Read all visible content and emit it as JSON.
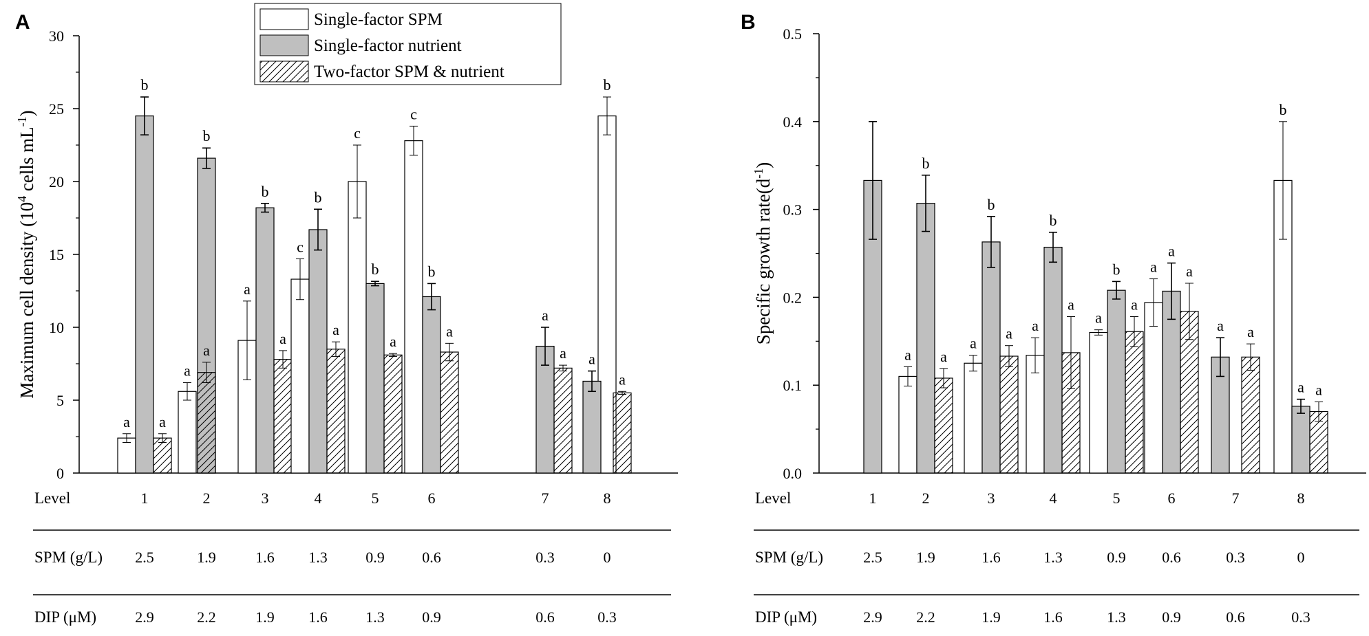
{
  "chart_data": [
    {
      "type": "bar",
      "panel": "A",
      "ylabel_main": "Maximum cell density (10",
      "ylabel_sup1": "4",
      "ylabel_mid": " cells mL",
      "ylabel_sup2": "-1",
      "ylabel_end": ")",
      "ylim": [
        0,
        30
      ],
      "yticks": [
        0,
        5,
        10,
        15,
        20,
        25,
        30
      ],
      "ytick_labels": [
        "0",
        "5",
        "10",
        "15",
        "20",
        "25",
        "30"
      ],
      "categories": [
        "1",
        "2",
        "3",
        "4",
        "5",
        "6",
        "7",
        "8"
      ],
      "series": [
        {
          "name": "Single-factor SPM",
          "style": "white",
          "values": [
            2.4,
            5.6,
            9.1,
            13.3,
            20.0,
            22.8,
            null,
            24.5
          ],
          "errors": [
            0.3,
            0.6,
            2.7,
            1.4,
            2.5,
            1.0,
            null,
            1.3
          ],
          "letters": [
            "a",
            "a",
            "a",
            "c",
            "c",
            "c",
            "",
            "b"
          ]
        },
        {
          "name": "Single-factor nutrient",
          "style": "gray",
          "values": [
            24.5,
            21.6,
            18.2,
            16.7,
            13.0,
            12.1,
            8.7,
            6.3
          ],
          "errors": [
            1.3,
            0.7,
            0.3,
            1.4,
            0.15,
            0.9,
            1.3,
            0.7
          ],
          "letters": [
            "b",
            "b",
            "b",
            "b",
            "b",
            "b",
            "a",
            "a"
          ]
        },
        {
          "name": "Two-factor SPM & nutrient",
          "style": "hatch",
          "values": [
            2.4,
            6.9,
            7.8,
            8.5,
            8.1,
            8.3,
            7.2,
            5.5
          ],
          "errors": [
            0.3,
            0.7,
            0.6,
            0.5,
            0.1,
            0.6,
            0.2,
            0.1
          ],
          "letters": [
            "a",
            "a",
            "a",
            "a",
            "a",
            "a",
            "a",
            "a"
          ]
        }
      ],
      "legend_position": "top-center",
      "table": {
        "rows": [
          {
            "label": "Level",
            "values": [
              "1",
              "2",
              "3",
              "4",
              "5",
              "6",
              "7",
              "8"
            ]
          },
          {
            "label": "SPM (g/L)",
            "values": [
              "2.5",
              "1.9",
              "1.6",
              "1.3",
              "0.9",
              "0.6",
              "0.3",
              "0"
            ]
          },
          {
            "label": "DIP (μM)",
            "values": [
              "2.9",
              "2.2",
              "1.9",
              "1.6",
              "1.3",
              "0.9",
              "0.6",
              "0.3"
            ]
          }
        ]
      }
    },
    {
      "type": "bar",
      "panel": "B",
      "ylabel_main": "Specific growth rate(d",
      "ylabel_sup1": "-1",
      "ylabel_end": ")",
      "ylim": [
        0,
        0.5
      ],
      "yticks": [
        0,
        0.1,
        0.2,
        0.3,
        0.4,
        0.5
      ],
      "ytick_labels": [
        "0.0",
        "0.1",
        "0.2",
        "0.3",
        "0.4",
        "0.5"
      ],
      "categories": [
        "1",
        "2",
        "3",
        "4",
        "5",
        "6",
        "7",
        "8"
      ],
      "series": [
        {
          "name": "Single-factor SPM",
          "style": "white",
          "values": [
            null,
            0.11,
            0.125,
            0.134,
            0.16,
            0.194,
            null,
            0.333
          ],
          "errors": [
            null,
            0.011,
            0.009,
            0.02,
            0.003,
            0.027,
            null,
            0.067
          ],
          "letters": [
            "",
            "a",
            "a",
            "a",
            "a",
            "a",
            "",
            "b"
          ]
        },
        {
          "name": "Single-factor nutrient",
          "style": "gray",
          "values": [
            0.333,
            0.307,
            0.263,
            0.257,
            0.208,
            0.207,
            0.132,
            0.076
          ],
          "errors": [
            0.067,
            0.032,
            0.029,
            0.017,
            0.01,
            0.032,
            0.022,
            0.008
          ],
          "letters": [
            "",
            "b",
            "b",
            "b",
            "b",
            "a",
            "a",
            "a"
          ]
        },
        {
          "name": "Two-factor SPM & nutrient",
          "style": "hatch",
          "values": [
            null,
            0.108,
            0.133,
            0.137,
            0.161,
            0.184,
            0.132,
            0.07
          ],
          "errors": [
            null,
            0.011,
            0.012,
            0.041,
            0.017,
            0.032,
            0.015,
            0.011
          ],
          "letters": [
            "",
            "a",
            "a",
            "a",
            "a",
            "a",
            "a",
            "a"
          ]
        }
      ],
      "table": {
        "rows": [
          {
            "label": "Level",
            "values": [
              "1",
              "2",
              "3",
              "4",
              "5",
              "6",
              "7",
              "8"
            ]
          },
          {
            "label": "SPM (g/L)",
            "values": [
              "2.5",
              "1.9",
              "1.6",
              "1.3",
              "0.9",
              "0.6",
              "0.3",
              "0"
            ]
          },
          {
            "label": "DIP (μM)",
            "values": [
              "2.9",
              "2.2",
              "1.9",
              "1.6",
              "1.3",
              "0.9",
              "0.6",
              "0.3"
            ]
          }
        ]
      }
    }
  ]
}
